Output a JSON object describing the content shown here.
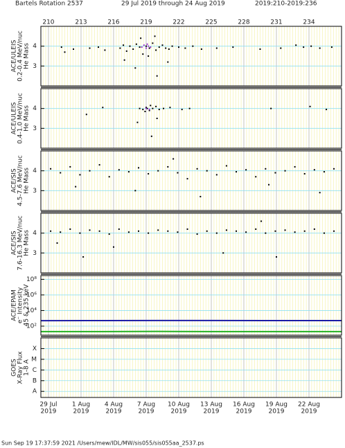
{
  "header": {
    "rotation": "Bartels Rotation 2537",
    "range": "29 Jul 2019 through 24 Aug 2019",
    "doy": "2019:210-2019:236"
  },
  "footer": "Sun Sep 19 17:37:59 2021   /Users/mew/IDL/MW/sis055/sis055aa_2537.ps",
  "x_axis": {
    "xlim": [
      209.3,
      237
    ],
    "xticks": [
      210,
      213,
      216,
      219,
      222,
      225,
      228,
      231,
      234
    ],
    "date_labels": [
      "29 Jul",
      "1 Aug",
      "4 Aug",
      "7 Aug",
      "10 Aug",
      "13 Aug",
      "16 Aug",
      "19 Aug",
      "22 Aug"
    ],
    "year": "2019"
  },
  "chart_data": [
    {
      "type": "scatter",
      "ylabel": [
        "ACE/ULEIS",
        "0.2-0.4 MeV/nuc",
        "He Mass"
      ],
      "ylim": [
        2,
        5
      ],
      "yticks": [
        3,
        4
      ],
      "series": [
        {
          "color": "#000000",
          "x": [
            211.2,
            211.5,
            212.3,
            213.8,
            214.6,
            215.2,
            216.6,
            216.9,
            217.2,
            217.5,
            217.8,
            218.1,
            218.4,
            218.7,
            219.0,
            219.3,
            219.6,
            219.9,
            220.2,
            220.5,
            220.8,
            221.1,
            221.4,
            222.0,
            222.6,
            223.3,
            224.1,
            225.5,
            227.0,
            229.5,
            231.4,
            232.8,
            233.5,
            234.2,
            235.0,
            236.1,
            217.0,
            218.0,
            219.2,
            220.0,
            221.0,
            218.5,
            219.8
          ],
          "values": [
            3.95,
            3.7,
            3.85,
            3.9,
            3.95,
            3.8,
            3.9,
            4.05,
            3.75,
            4.0,
            3.85,
            4.1,
            3.95,
            3.6,
            4.0,
            3.9,
            4.15,
            3.8,
            3.95,
            4.05,
            3.9,
            3.85,
            4.0,
            3.95,
            3.9,
            4.0,
            3.85,
            3.9,
            3.95,
            3.85,
            3.9,
            4.05,
            3.95,
            4.0,
            3.9,
            3.95,
            3.3,
            2.9,
            3.5,
            2.5,
            3.2,
            4.4,
            4.5
          ]
        },
        {
          "color": "#9933cc",
          "x": [
            218.6,
            218.8,
            219.0,
            219.2,
            219.4,
            219.1
          ],
          "values": [
            3.95,
            4.05,
            3.9,
            4.0,
            3.95,
            4.1
          ]
        }
      ]
    },
    {
      "type": "scatter",
      "ylabel": [
        "ACE/ULEIS",
        "0.4-1.0 MeV/nuc",
        "He Mass"
      ],
      "ylim": [
        2,
        5
      ],
      "yticks": [
        3,
        4
      ],
      "series": [
        {
          "color": "#000000",
          "x": [
            218.4,
            218.7,
            219.0,
            219.3,
            219.6,
            219.9,
            220.2,
            218.9,
            219.4,
            219.1,
            220.6,
            221.2,
            222.3,
            223.0,
            215.0,
            213.5,
            230.5,
            234.1,
            235.6,
            219.5,
            218.2,
            220.0
          ],
          "values": [
            4.0,
            3.95,
            4.05,
            3.9,
            4.0,
            4.1,
            3.95,
            3.85,
            4.15,
            4.0,
            4.0,
            4.05,
            3.95,
            4.0,
            4.05,
            3.7,
            4.0,
            4.1,
            3.95,
            2.6,
            3.3,
            3.5
          ]
        },
        {
          "color": "#9933cc",
          "x": [
            219.0,
            219.3
          ],
          "values": [
            4.0,
            3.95
          ]
        }
      ]
    },
    {
      "type": "scatter",
      "ylabel": [
        "ACE/SIS",
        "4.5-7.6 MeV/nuc",
        "He Mass"
      ],
      "ylim": [
        2,
        5
      ],
      "yticks": [
        3,
        4
      ],
      "series": [
        {
          "color": "#000000",
          "x": [
            210.2,
            211.1,
            212.0,
            212.9,
            213.8,
            214.7,
            215.6,
            216.5,
            217.4,
            218.3,
            219.2,
            220.1,
            221.0,
            221.9,
            222.8,
            223.7,
            224.6,
            225.5,
            226.4,
            227.3,
            228.2,
            229.1,
            230.0,
            230.9,
            231.8,
            232.7,
            233.6,
            234.5,
            235.4,
            236.3,
            212.5,
            218.0,
            224.0,
            230.3,
            235.0,
            221.5
          ],
          "values": [
            4.1,
            3.9,
            4.2,
            3.8,
            4.0,
            4.3,
            3.7,
            4.05,
            3.95,
            4.15,
            3.85,
            4.0,
            4.2,
            3.9,
            3.6,
            4.1,
            4.0,
            3.8,
            4.25,
            3.95,
            4.05,
            3.7,
            4.1,
            3.9,
            4.0,
            4.2,
            3.85,
            4.05,
            3.95,
            4.1,
            3.2,
            3.0,
            2.7,
            3.3,
            2.9,
            4.6
          ]
        }
      ]
    },
    {
      "type": "scatter",
      "ylabel": [
        "ACE/SIS",
        "7.6-16.3 MeV/nuc",
        "He Mass"
      ],
      "ylim": [
        2,
        5
      ],
      "yticks": [
        3,
        4
      ],
      "series": [
        {
          "color": "#000000",
          "x": [
            210.2,
            211.1,
            212.0,
            212.9,
            213.8,
            214.7,
            215.6,
            216.5,
            217.4,
            218.3,
            219.2,
            220.1,
            221.0,
            221.9,
            222.8,
            223.7,
            224.6,
            225.5,
            226.4,
            227.3,
            228.2,
            229.1,
            230.0,
            230.9,
            231.8,
            232.7,
            233.6,
            234.5,
            235.4,
            236.3,
            213.2,
            216.0,
            226.1,
            231.0,
            210.8,
            229.6
          ],
          "values": [
            4.1,
            4.05,
            4.2,
            4.0,
            4.15,
            4.1,
            3.95,
            4.2,
            4.05,
            4.1,
            4.0,
            4.15,
            4.1,
            4.05,
            4.2,
            3.95,
            4.1,
            4.0,
            4.15,
            4.1,
            4.05,
            4.2,
            4.0,
            4.1,
            4.15,
            4.05,
            4.1,
            4.2,
            4.0,
            4.1,
            2.8,
            3.3,
            3.0,
            2.8,
            3.5,
            4.6
          ]
        }
      ]
    },
    {
      "type": "line",
      "ylabel": [
        "ACE/EPAM",
        "e⁻ Intensity",
        "45 & 235 keV"
      ],
      "log": true,
      "ylim": [
        7,
        300000000
      ],
      "yticks": [
        {
          "value": 100,
          "label": "10²"
        },
        {
          "value": 10000,
          "label": "10⁴"
        },
        {
          "value": 1000000,
          "label": "10⁶"
        },
        {
          "value": 100000000,
          "label": "10⁸"
        }
      ],
      "series": [
        {
          "color": "#1a1aa6",
          "x": [
            209.3,
            215,
            220,
            225,
            230,
            237
          ],
          "values": [
            500,
            510,
            530,
            520,
            515,
            510
          ]
        },
        {
          "color": "#22b022",
          "x": [
            209.3,
            215,
            220,
            225,
            230,
            237
          ],
          "values": [
            20,
            20,
            21,
            20,
            20,
            20
          ]
        }
      ]
    },
    {
      "type": "line",
      "ylabel": [
        "GOES",
        "X-Ray Flux",
        "1-8 A"
      ],
      "log": true,
      "ylim": [
        2.7e-09,
        0.001
      ],
      "yticks": [
        {
          "value": 1e-08,
          "label": "A"
        },
        {
          "value": 1e-07,
          "label": "B"
        },
        {
          "value": 1e-06,
          "label": "C"
        },
        {
          "value": 1e-05,
          "label": "M"
        },
        {
          "value": 0.0001,
          "label": "X"
        }
      ],
      "series": []
    }
  ]
}
